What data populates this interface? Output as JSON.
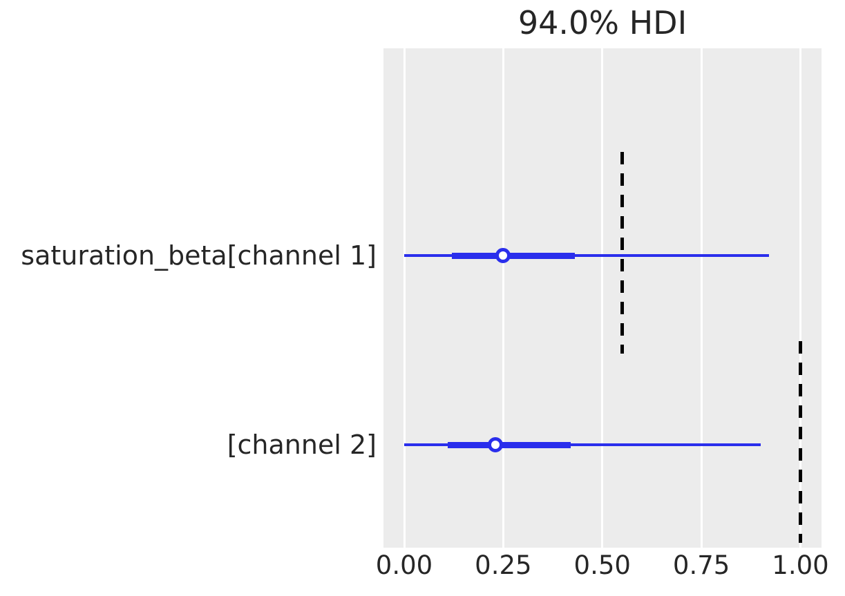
{
  "chart_data": {
    "type": "forest",
    "title": "94.0% HDI",
    "hdi_probability": "94.0%",
    "xlabel": "",
    "ylabel": "",
    "x_tick_labels": [
      "0.00",
      "0.25",
      "0.50",
      "0.75",
      "1.00"
    ],
    "x_tick_values": [
      0,
      0.25,
      0.5,
      0.75,
      1.0
    ],
    "xlim": [
      -0.052,
      1.053
    ],
    "grid": "vertical-gridlines-on",
    "legend_position": "none",
    "rows": [
      {
        "label": "saturation_beta[channel 1]",
        "hdi_low": 0.0,
        "hdi_high": 0.92,
        "quartile_low": 0.12,
        "quartile_high": 0.43,
        "median": 0.25,
        "reference_value": 0.55
      },
      {
        "label": "[channel 2]",
        "hdi_low": 0.0,
        "hdi_high": 0.9,
        "quartile_low": 0.11,
        "quartile_high": 0.42,
        "median": 0.23,
        "reference_value": 1.0
      }
    ],
    "colors": {
      "interval": "#2a2eec",
      "reference_line": "#000000",
      "plot_background": "#ececec",
      "gridline": "#ffffff",
      "figure_background": "#ffffff",
      "text": "#262626"
    }
  }
}
